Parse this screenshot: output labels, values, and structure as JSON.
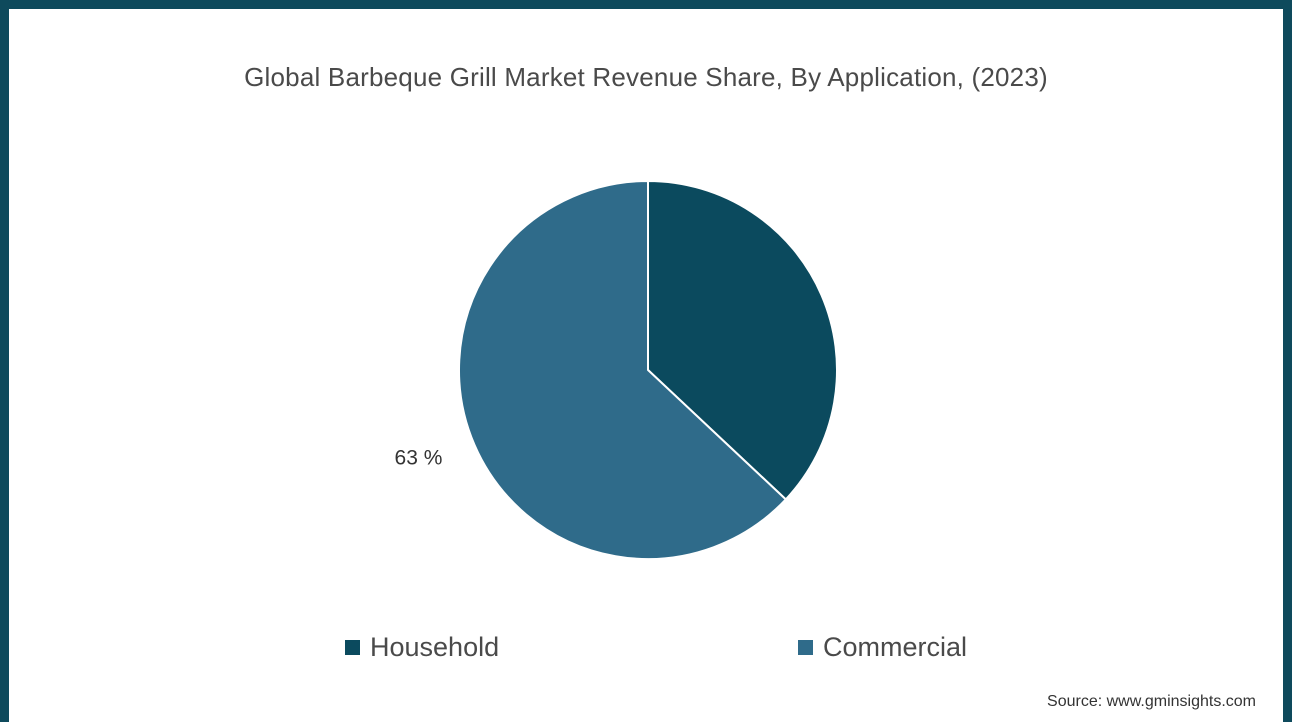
{
  "chart_data": {
    "type": "pie",
    "title": "Global Barbeque Grill Market Revenue Share, By Application, (2023)",
    "categories": [
      "Household",
      "Commercial"
    ],
    "values": [
      37,
      63
    ],
    "data_labels": [
      "",
      "63 %"
    ],
    "colors": [
      "#0b4a5e",
      "#2f6b8a"
    ],
    "legend_position": "bottom",
    "start_angle_deg": 0,
    "direction": "clockwise",
    "slice_border_color": "#ffffff"
  },
  "legend": {
    "items": [
      {
        "label": "Household",
        "color": "#0b4a5e"
      },
      {
        "label": "Commercial",
        "color": "#2f6b8a"
      }
    ]
  },
  "source_text": "Source: www.gminsights.com",
  "frame_color": "#0e4a5c"
}
